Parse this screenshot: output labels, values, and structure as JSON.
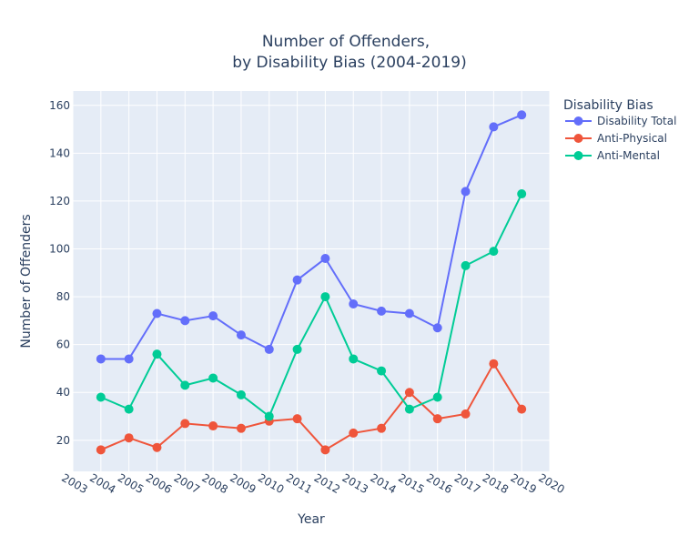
{
  "chart_data": {
    "type": "line",
    "title_line1": "Number of Offenders,",
    "title_line2": "by Disability Bias (2004-2019)",
    "xlabel": "Year",
    "ylabel": "Number of Offenders",
    "xlim": [
      2003,
      2020
    ],
    "ylim": [
      7,
      166
    ],
    "x_ticks": [
      "2003",
      "2004",
      "2005",
      "2006",
      "2007",
      "2008",
      "2009",
      "2010",
      "2011",
      "2012",
      "2013",
      "2014",
      "2015",
      "2016",
      "2017",
      "2018",
      "2019",
      "2020"
    ],
    "y_ticks": [
      "20",
      "40",
      "60",
      "80",
      "100",
      "120",
      "140",
      "160"
    ],
    "legend_title": "Disability Bias",
    "legend_position": "right",
    "grid": true,
    "x": [
      2004,
      2005,
      2006,
      2007,
      2008,
      2009,
      2010,
      2011,
      2012,
      2013,
      2014,
      2015,
      2016,
      2017,
      2018,
      2019
    ],
    "series": [
      {
        "name": "Disability Total",
        "color": "#636efa",
        "values": [
          54,
          54,
          73,
          70,
          72,
          64,
          58,
          87,
          96,
          77,
          74,
          73,
          67,
          124,
          151,
          156
        ]
      },
      {
        "name": "Anti-Physical",
        "color": "#ef553b",
        "values": [
          16,
          21,
          17,
          27,
          26,
          25,
          28,
          29,
          16,
          23,
          25,
          40,
          29,
          31,
          52,
          33
        ]
      },
      {
        "name": "Anti-Mental",
        "color": "#00cc96",
        "values": [
          38,
          33,
          56,
          43,
          46,
          39,
          30,
          58,
          80,
          54,
          49,
          33,
          38,
          93,
          99,
          123
        ]
      }
    ]
  }
}
